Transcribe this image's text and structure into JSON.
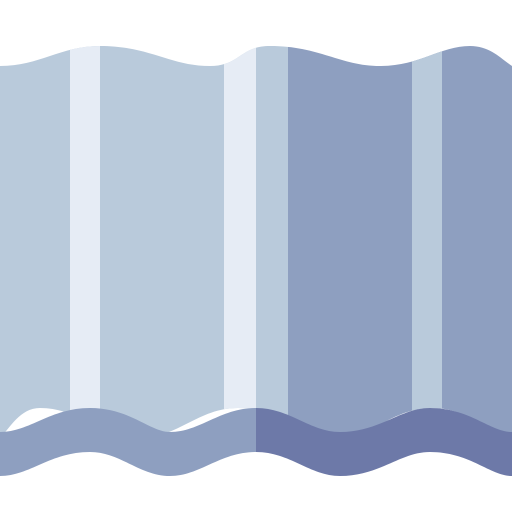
{
  "icon": {
    "name": "corrugated-sheet-icon",
    "colors": {
      "background": "#ffffff",
      "panel_light": "#b9cadb",
      "panel_dark": "#8e9fc0",
      "highlight_stripe": "#e6ecf5",
      "mid_stripe": "#b9cadb",
      "bottom_wave_light": "#8e9fc0",
      "bottom_wave_dark": "#6d79a8"
    }
  }
}
